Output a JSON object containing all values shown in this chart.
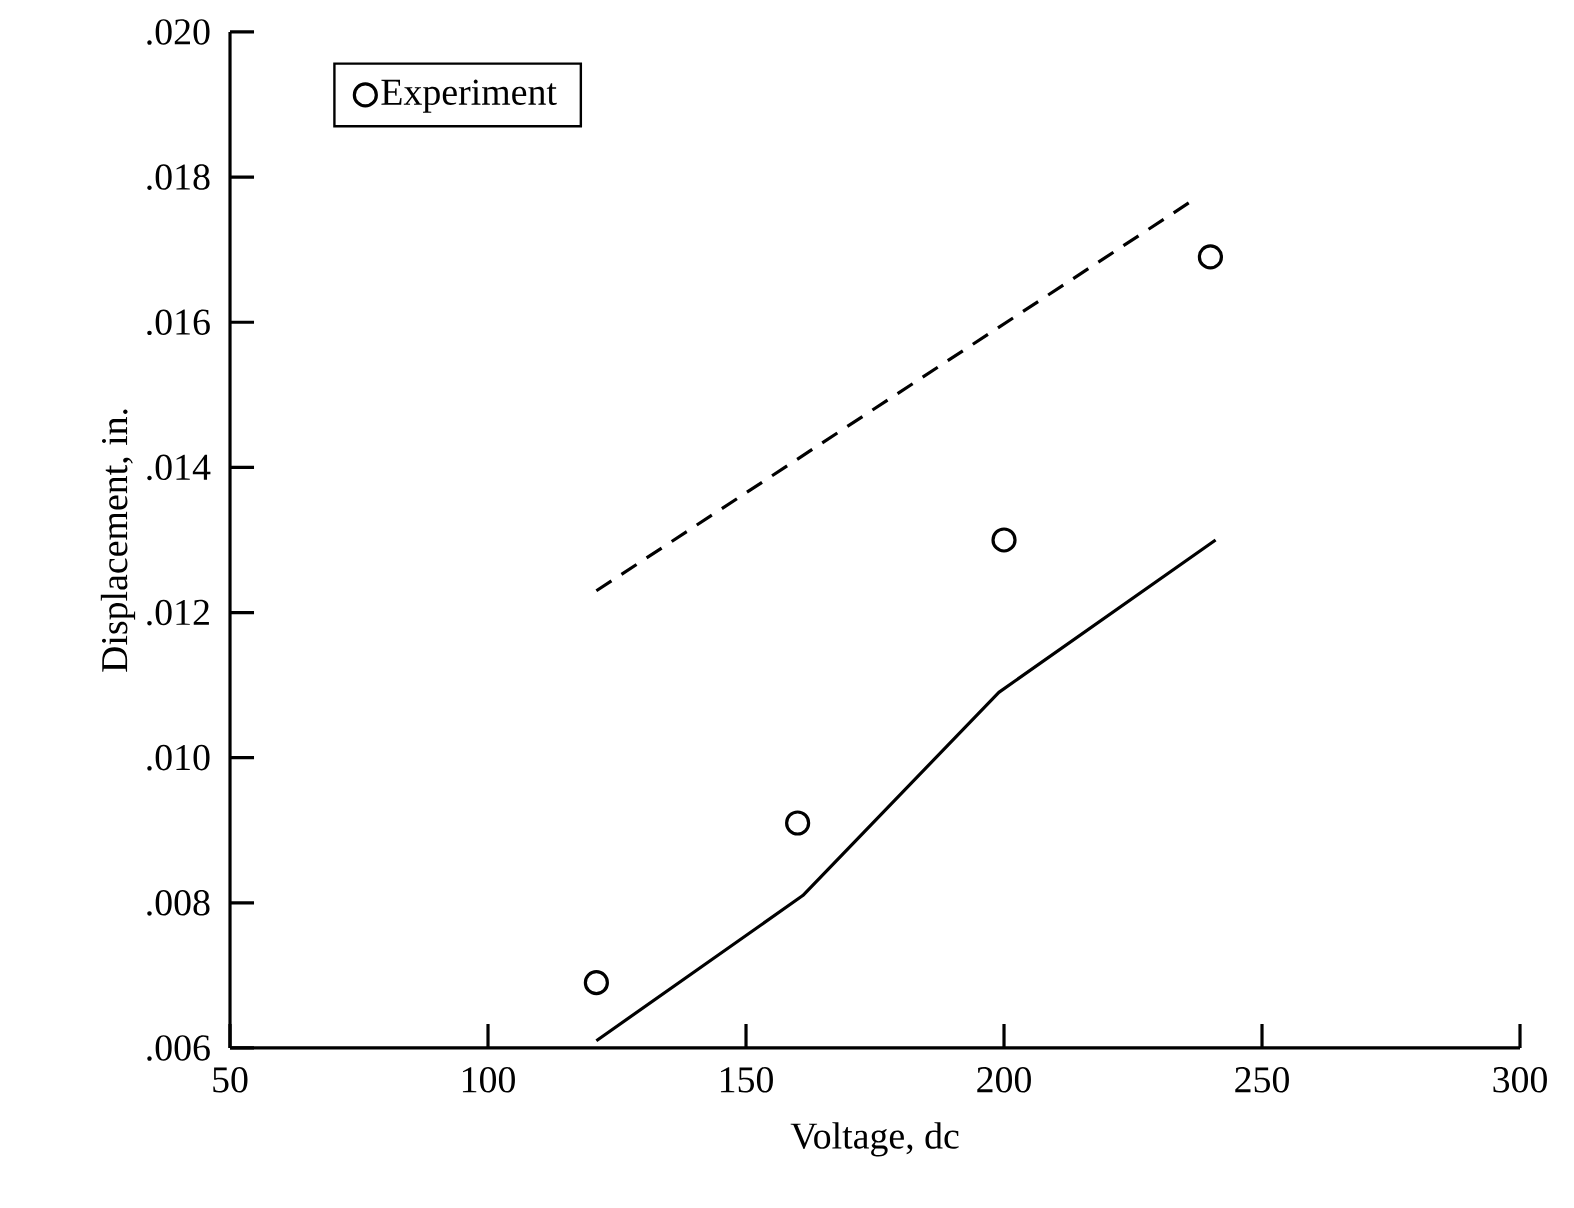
{
  "chart_data": {
    "type": "line",
    "xlabel": "Voltage, dc",
    "ylabel": "Displacement, in.",
    "xlim": [
      50,
      300
    ],
    "ylim": [
      0.006,
      0.02
    ],
    "xticks": [
      50,
      100,
      150,
      200,
      250,
      300
    ],
    "yticks": [
      {
        "value": 0.006,
        "label": ".006"
      },
      {
        "value": 0.008,
        "label": ".008"
      },
      {
        "value": 0.01,
        "label": ".010"
      },
      {
        "value": 0.012,
        "label": ".012"
      },
      {
        "value": 0.014,
        "label": ".014"
      },
      {
        "value": 0.016,
        "label": ".016"
      },
      {
        "value": 0.018,
        "label": ".018"
      },
      {
        "value": 0.02,
        "label": ".020"
      }
    ],
    "legend": "top left",
    "series": [
      {
        "name": "Experiment",
        "type": "scatter",
        "marker": "circle",
        "color": "#000000",
        "x": [
          121,
          160,
          200,
          240
        ],
        "values": [
          0.0069,
          0.0091,
          0.013,
          0.0169
        ]
      },
      {
        "line_style": "solid",
        "color": "#000000",
        "x": [
          121,
          161,
          199,
          241
        ],
        "values": [
          0.0061,
          0.0081,
          0.0109,
          0.013
        ]
      },
      {
        "line_style": "dashed",
        "color": "#000000",
        "x": [
          121,
          237
        ],
        "values": [
          0.0123,
          0.0177
        ]
      }
    ]
  }
}
